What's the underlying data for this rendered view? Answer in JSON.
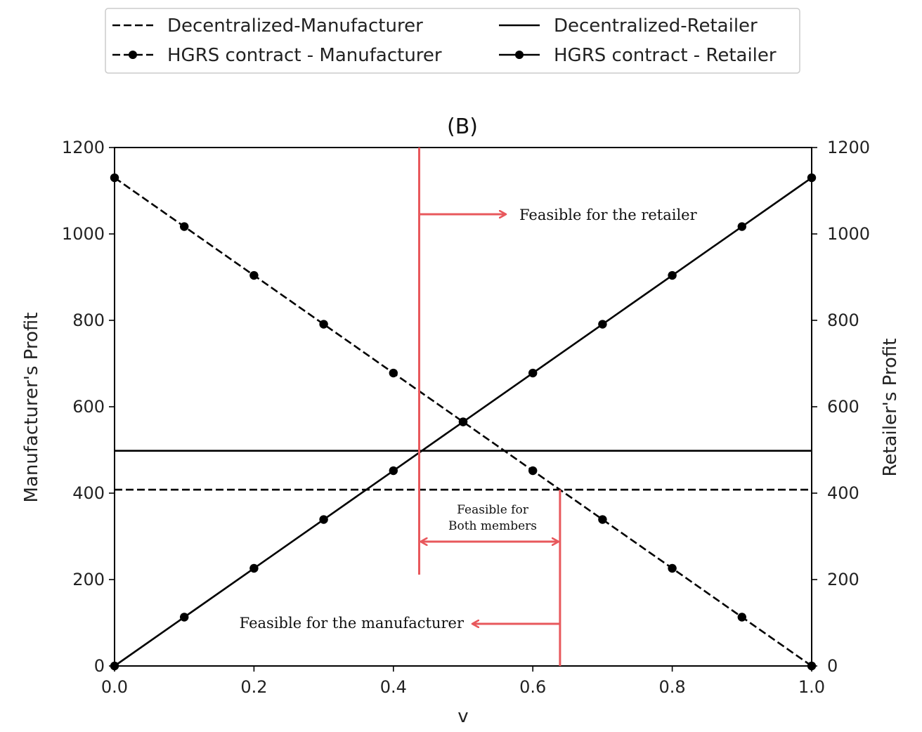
{
  "chart_data": {
    "type": "line",
    "title": "(B)",
    "xlabel": "v",
    "ylabel_left": "Manufacturer's Profit",
    "ylabel_right": "Retailer's Profit",
    "xlim": [
      0,
      1
    ],
    "ylim": [
      0,
      1200
    ],
    "x_ticks": [
      0,
      0.2,
      0.4,
      0.6,
      0.8,
      1
    ],
    "x_tick_labels": [
      "0.0",
      "0.2",
      "0.4",
      "0.6",
      "0.8",
      "1.0"
    ],
    "y_ticks": [
      0,
      200,
      400,
      600,
      800,
      1000,
      1200
    ],
    "y_tick_labels": [
      "0",
      "200",
      "400",
      "600",
      "800",
      "1000",
      "1200"
    ],
    "grid": false,
    "legend_position": "top",
    "series": [
      {
        "name": "Decentralized-Manufacturer",
        "style": "dashed",
        "x": [
          0,
          1
        ],
        "values": [
          408,
          408
        ]
      },
      {
        "name": "HGRS contract - Manufacturer",
        "style": "dashed-marker",
        "x": [
          0,
          0.1,
          0.2,
          0.3,
          0.4,
          0.5,
          0.6,
          0.7,
          0.8,
          0.9,
          1.0
        ],
        "values": [
          1130,
          1017,
          904,
          791,
          678,
          565,
          452,
          339,
          226,
          113,
          0
        ]
      },
      {
        "name": "Decentralized-Retailer",
        "style": "solid",
        "x": [
          0,
          1
        ],
        "values": [
          498,
          498
        ]
      },
      {
        "name": "HGRS contract - Retailer",
        "style": "solid-marker",
        "x": [
          0,
          0.1,
          0.2,
          0.3,
          0.4,
          0.5,
          0.6,
          0.7,
          0.8,
          0.9,
          1.0
        ],
        "values": [
          0,
          113,
          226,
          339,
          452,
          565,
          678,
          791,
          904,
          1017,
          1130
        ]
      }
    ],
    "annotations": {
      "retailer_bound_v": 0.437,
      "manufacturer_bound_v": 0.639,
      "retailer_text": "Feasible for the retailer",
      "manufacturer_text": "Feasible for the manufacturer",
      "both_text_line1": "Feasible for",
      "both_text_line2": "Both members",
      "color": "#e8585c"
    }
  }
}
